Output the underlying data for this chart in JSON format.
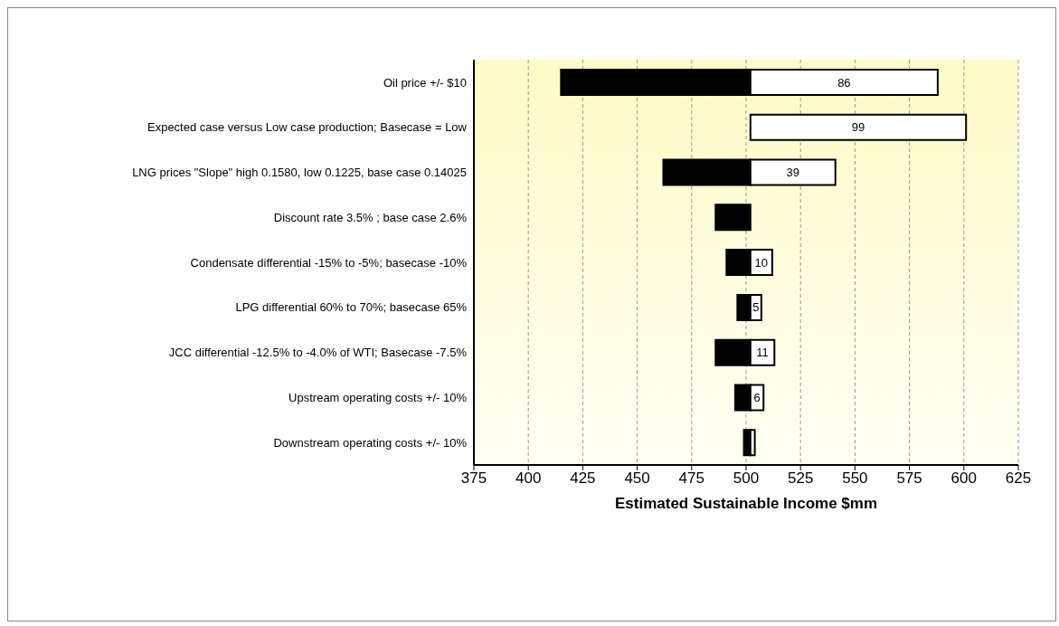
{
  "chart_data": {
    "type": "bar",
    "orientation": "horizontal",
    "xlabel": "Estimated Sustainable Income $mm",
    "categories": [
      "Oil price +/- $10",
      "Expected case versus Low case production; Basecase = Low",
      "LNG prices \"Slope\" high 0.1580, low 0.1225, base case 0.14025",
      "Discount rate 3.5% ; base case 2.6%",
      "Condensate differential -15% to -5%; basecase -10%",
      "LPG differential 60% to 70%; basecase 65%",
      "JCC differential -12.5% to -4.0% of WTI;  Basecase -7.5%",
      "Upstream operating costs +/- 10%",
      "Downstream operating costs +/- 10%"
    ],
    "series": [
      {
        "color": "#000000",
        "base": [
          415,
          null,
          462,
          486,
          491,
          496,
          486,
          495,
          499
        ],
        "values": [
          87,
          null,
          40,
          16,
          11,
          6,
          16,
          7,
          3
        ]
      },
      {
        "color": "#ffffff",
        "base": [
          502,
          502,
          502,
          null,
          502,
          502,
          502,
          502,
          502
        ],
        "values": [
          86,
          99,
          39,
          null,
          10,
          5,
          11,
          6,
          2
        ],
        "value_labels": [
          "86",
          "99",
          "39",
          null,
          "10",
          "5",
          "11",
          "6",
          null
        ]
      }
    ],
    "xlim": [
      375,
      625
    ],
    "xticks": [
      375,
      400,
      425,
      450,
      475,
      500,
      525,
      550,
      575,
      600,
      625
    ],
    "grid": "x"
  }
}
